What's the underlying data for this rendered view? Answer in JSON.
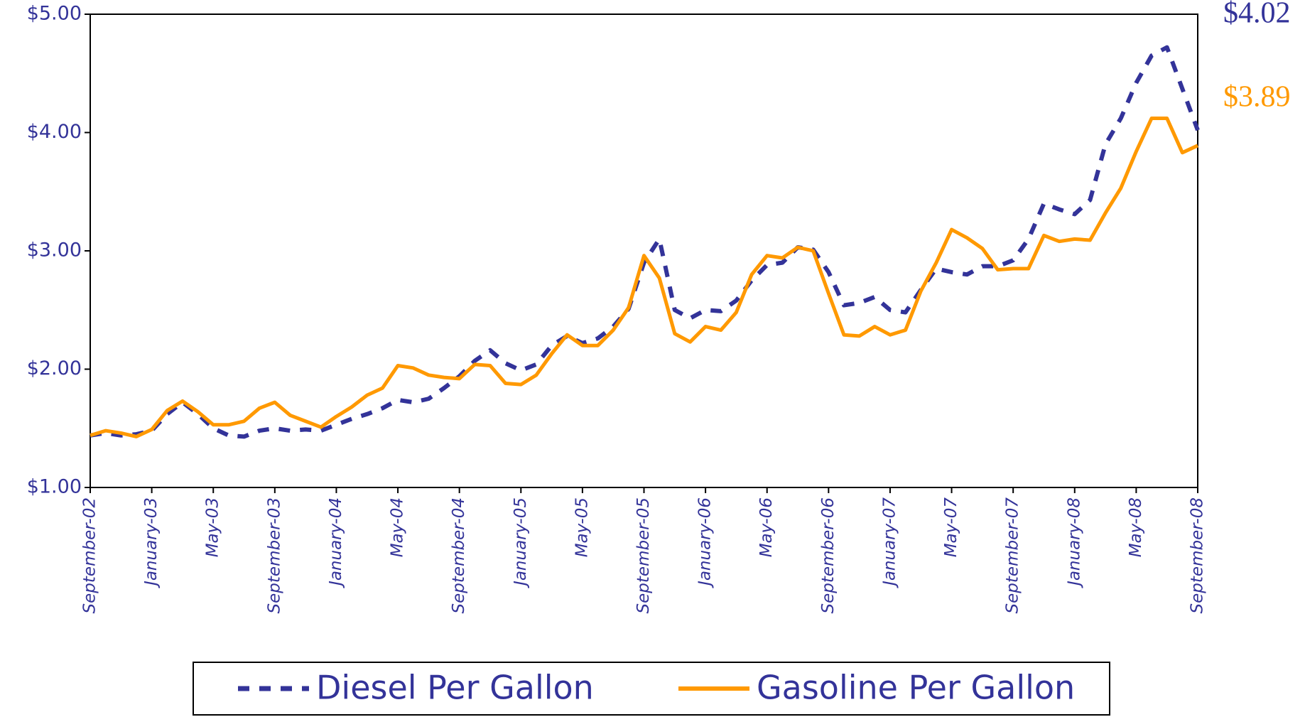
{
  "chart_data": {
    "type": "line",
    "categories": [
      "September-02",
      null,
      null,
      null,
      "January-03",
      null,
      null,
      null,
      "May-03",
      null,
      null,
      null,
      "September-03",
      null,
      null,
      null,
      "January-04",
      null,
      null,
      null,
      "May-04",
      null,
      null,
      null,
      "September-04",
      null,
      null,
      null,
      "January-05",
      null,
      null,
      null,
      "May-05",
      null,
      null,
      null,
      "September-05",
      null,
      null,
      null,
      "January-06",
      null,
      null,
      null,
      "May-06",
      null,
      null,
      null,
      "September-06",
      null,
      null,
      null,
      "January-07",
      null,
      null,
      null,
      "May-07",
      null,
      null,
      null,
      "September-07",
      null,
      null,
      null,
      "January-08",
      null,
      null,
      null,
      "May-08",
      null,
      null,
      null,
      "September-08"
    ],
    "series": [
      {
        "name": "Diesel Per Gallon",
        "color": "#333399",
        "dashed": true,
        "end_label": "$4.02",
        "values": [
          1.44,
          1.46,
          1.44,
          1.45,
          1.48,
          1.62,
          1.72,
          1.62,
          1.5,
          1.44,
          1.43,
          1.48,
          1.5,
          1.48,
          1.49,
          1.48,
          1.53,
          1.58,
          1.62,
          1.67,
          1.74,
          1.72,
          1.75,
          1.84,
          1.94,
          2.07,
          2.16,
          2.05,
          1.99,
          2.04,
          2.2,
          2.28,
          2.22,
          2.26,
          2.36,
          2.51,
          2.9,
          3.1,
          2.5,
          2.43,
          2.5,
          2.49,
          2.58,
          2.75,
          2.88,
          2.9,
          3.03,
          3.01,
          2.82,
          2.54,
          2.56,
          2.61,
          2.5,
          2.48,
          2.67,
          2.85,
          2.82,
          2.8,
          2.87,
          2.87,
          2.92,
          3.1,
          3.4,
          3.35,
          3.31,
          3.43,
          3.9,
          4.12,
          4.42,
          4.65,
          4.72,
          4.37,
          4.02
        ]
      },
      {
        "name": "Gasoline Per Gallon",
        "color": "#ff9900",
        "dashed": false,
        "end_label": "$3.89",
        "values": [
          1.44,
          1.48,
          1.46,
          1.43,
          1.49,
          1.65,
          1.73,
          1.64,
          1.53,
          1.53,
          1.56,
          1.67,
          1.72,
          1.61,
          1.56,
          1.51,
          1.6,
          1.68,
          1.78,
          1.84,
          2.03,
          2.01,
          1.95,
          1.93,
          1.92,
          2.04,
          2.03,
          1.88,
          1.87,
          1.95,
          2.13,
          2.29,
          2.2,
          2.2,
          2.33,
          2.52,
          2.96,
          2.77,
          2.3,
          2.23,
          2.36,
          2.33,
          2.48,
          2.8,
          2.96,
          2.94,
          3.03,
          3.0,
          2.64,
          2.29,
          2.28,
          2.36,
          2.29,
          2.33,
          2.66,
          2.9,
          3.18,
          3.11,
          3.02,
          2.84,
          2.85,
          2.85,
          3.13,
          3.08,
          3.1,
          3.09,
          3.32,
          3.53,
          3.84,
          4.12,
          4.12,
          3.83,
          3.89
        ]
      }
    ],
    "ylim": [
      1,
      5
    ],
    "yticks": [
      {
        "value": 1,
        "label": "$1.00"
      },
      {
        "value": 2,
        "label": "$2.00"
      },
      {
        "value": 3,
        "label": "$3.00"
      },
      {
        "value": 4,
        "label": "$4.00"
      },
      {
        "value": 5,
        "label": "$5.00"
      }
    ],
    "grid": false,
    "legend": "bottom"
  }
}
